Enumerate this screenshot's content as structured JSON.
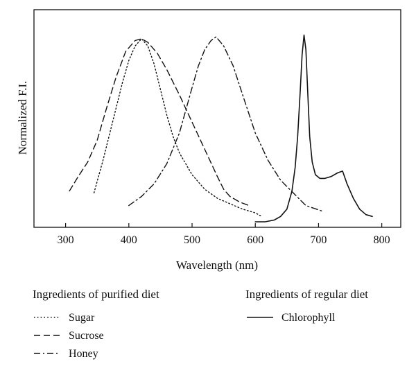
{
  "chart_data": {
    "type": "line",
    "xlabel": "Wavelength (nm)",
    "ylabel": "Normalized F.I.",
    "xlim": [
      250,
      830
    ],
    "ylim": [
      0,
      1.2
    ],
    "xticks": [
      300,
      400,
      500,
      600,
      700,
      800
    ],
    "grid": false,
    "legend_groups": [
      {
        "title": "Ingredients of purified diet",
        "series": [
          "Sugar",
          "Sucrose",
          "Honey"
        ]
      },
      {
        "title": "Ingredients of regular diet",
        "series": [
          "Chlorophyll"
        ]
      }
    ],
    "series": [
      {
        "name": "Sugar",
        "style": "dotted",
        "x": [
          345,
          360,
          370,
          380,
          390,
          400,
          410,
          420,
          430,
          440,
          450,
          460,
          470,
          480,
          500,
          520,
          540,
          560,
          580,
          600,
          610
        ],
        "y": [
          0.19,
          0.38,
          0.52,
          0.66,
          0.8,
          0.92,
          1.0,
          1.04,
          1.0,
          0.9,
          0.76,
          0.62,
          0.5,
          0.41,
          0.29,
          0.21,
          0.16,
          0.13,
          0.1,
          0.08,
          0.06
        ]
      },
      {
        "name": "Sucrose",
        "style": "dashed",
        "x": [
          306,
          320,
          335,
          350,
          365,
          380,
          395,
          410,
          420,
          430,
          445,
          460,
          480,
          500,
          520,
          540,
          550,
          560,
          575,
          590
        ],
        "y": [
          0.2,
          0.28,
          0.36,
          0.48,
          0.66,
          0.83,
          0.97,
          1.03,
          1.04,
          1.02,
          0.96,
          0.87,
          0.73,
          0.58,
          0.43,
          0.28,
          0.21,
          0.17,
          0.14,
          0.12
        ]
      },
      {
        "name": "Honey",
        "style": "dashdot",
        "x": [
          400,
          420,
          440,
          460,
          480,
          500,
          510,
          520,
          530,
          538,
          550,
          565,
          580,
          600,
          620,
          640,
          660,
          680,
          705
        ],
        "y": [
          0.12,
          0.17,
          0.24,
          0.35,
          0.52,
          0.77,
          0.89,
          0.98,
          1.03,
          1.05,
          1.0,
          0.89,
          0.73,
          0.52,
          0.37,
          0.26,
          0.19,
          0.12,
          0.09
        ]
      },
      {
        "name": "Chlorophyll",
        "style": "solid",
        "x": [
          600,
          615,
          630,
          640,
          650,
          658,
          663,
          667,
          671,
          674,
          677,
          680,
          683,
          686,
          690,
          695,
          702,
          710,
          720,
          730,
          738,
          745,
          755,
          765,
          775,
          785
        ],
        "y": [
          0.03,
          0.03,
          0.04,
          0.06,
          0.1,
          0.2,
          0.33,
          0.5,
          0.75,
          0.95,
          1.06,
          0.98,
          0.74,
          0.5,
          0.36,
          0.29,
          0.27,
          0.27,
          0.28,
          0.3,
          0.31,
          0.24,
          0.16,
          0.1,
          0.07,
          0.06
        ]
      }
    ]
  }
}
